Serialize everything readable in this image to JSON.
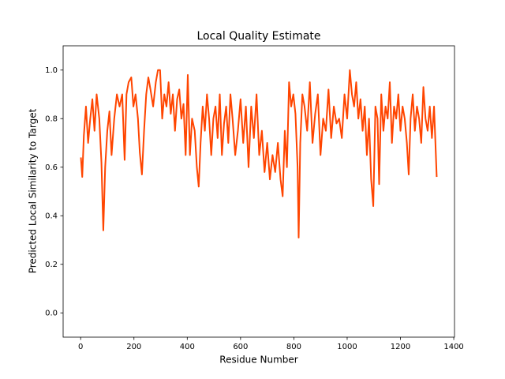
{
  "chart_data": {
    "type": "line",
    "title": "Local Quality Estimate",
    "x_label": "Residue Number",
    "y_label": "Predicted Local Similarity to Target",
    "color": "#ff4500",
    "xlim": [
      -65.75,
      1402.75
    ],
    "ylim": [
      -0.1,
      1.1
    ],
    "xticks": [
      0,
      200,
      400,
      600,
      800,
      1000,
      1200,
      1400
    ],
    "yticks": [
      {
        "value": 0,
        "label": "0.0"
      },
      {
        "value": 0.2,
        "label": "0.2"
      },
      {
        "value": 0.4,
        "label": "0.4"
      },
      {
        "value": 0.6,
        "label": "0.6"
      },
      {
        "value": 0.8,
        "label": "0.8"
      },
      {
        "value": 1,
        "label": "1.0"
      }
    ],
    "x": [
      1,
      6,
      12,
      20,
      28,
      36,
      44,
      52,
      60,
      70,
      78,
      85,
      92,
      100,
      108,
      116,
      126,
      136,
      146,
      156,
      165,
      172,
      180,
      190,
      198,
      206,
      215,
      222,
      230,
      238,
      246,
      254,
      262,
      272,
      282,
      290,
      298,
      306,
      314,
      322,
      330,
      338,
      346,
      354,
      362,
      370,
      378,
      386,
      394,
      402,
      410,
      418,
      428,
      436,
      443,
      450,
      458,
      466,
      474,
      482,
      490,
      498,
      506,
      514,
      522,
      530,
      538,
      546,
      554,
      562,
      570,
      580,
      590,
      600,
      610,
      620,
      630,
      640,
      650,
      660,
      670,
      680,
      690,
      700,
      710,
      720,
      730,
      740,
      750,
      758,
      766,
      774,
      782,
      790,
      798,
      806,
      814,
      818,
      824,
      832,
      840,
      850,
      860,
      870,
      880,
      890,
      900,
      910,
      920,
      930,
      940,
      950,
      960,
      970,
      980,
      990,
      1000,
      1010,
      1018,
      1026,
      1034,
      1042,
      1050,
      1058,
      1066,
      1074,
      1082,
      1090,
      1098,
      1106,
      1114,
      1120,
      1128,
      1136,
      1144,
      1152,
      1160,
      1168,
      1176,
      1184,
      1192,
      1200,
      1208,
      1216,
      1224,
      1231,
      1238,
      1246,
      1254,
      1262,
      1270,
      1278,
      1286,
      1294,
      1302,
      1310,
      1318,
      1326,
      1336
    ],
    "values": [
      0.64,
      0.56,
      0.73,
      0.85,
      0.7,
      0.8,
      0.88,
      0.75,
      0.9,
      0.8,
      0.62,
      0.34,
      0.6,
      0.75,
      0.83,
      0.65,
      0.8,
      0.9,
      0.85,
      0.9,
      0.63,
      0.9,
      0.95,
      0.97,
      0.85,
      0.9,
      0.8,
      0.66,
      0.57,
      0.75,
      0.9,
      0.97,
      0.92,
      0.85,
      0.95,
      1.0,
      1.0,
      0.8,
      0.9,
      0.85,
      0.95,
      0.82,
      0.9,
      0.75,
      0.88,
      0.92,
      0.8,
      0.86,
      0.65,
      0.98,
      0.65,
      0.8,
      0.75,
      0.6,
      0.52,
      0.7,
      0.85,
      0.75,
      0.9,
      0.8,
      0.65,
      0.8,
      0.85,
      0.72,
      0.9,
      0.65,
      0.78,
      0.85,
      0.7,
      0.9,
      0.8,
      0.65,
      0.75,
      0.88,
      0.7,
      0.85,
      0.6,
      0.85,
      0.72,
      0.9,
      0.65,
      0.75,
      0.58,
      0.7,
      0.55,
      0.65,
      0.58,
      0.7,
      0.55,
      0.48,
      0.75,
      0.6,
      0.95,
      0.85,
      0.9,
      0.82,
      0.6,
      0.31,
      0.7,
      0.9,
      0.85,
      0.75,
      0.95,
      0.7,
      0.82,
      0.9,
      0.65,
      0.8,
      0.75,
      0.92,
      0.72,
      0.85,
      0.78,
      0.8,
      0.72,
      0.9,
      0.8,
      1.0,
      0.9,
      0.85,
      0.95,
      0.8,
      0.88,
      0.75,
      0.85,
      0.65,
      0.8,
      0.55,
      0.44,
      0.85,
      0.8,
      0.53,
      0.9,
      0.75,
      0.85,
      0.8,
      0.95,
      0.7,
      0.85,
      0.8,
      0.9,
      0.75,
      0.85,
      0.8,
      0.7,
      0.57,
      0.8,
      0.9,
      0.75,
      0.85,
      0.8,
      0.7,
      0.93,
      0.8,
      0.75,
      0.85,
      0.72,
      0.85,
      0.56
    ]
  }
}
